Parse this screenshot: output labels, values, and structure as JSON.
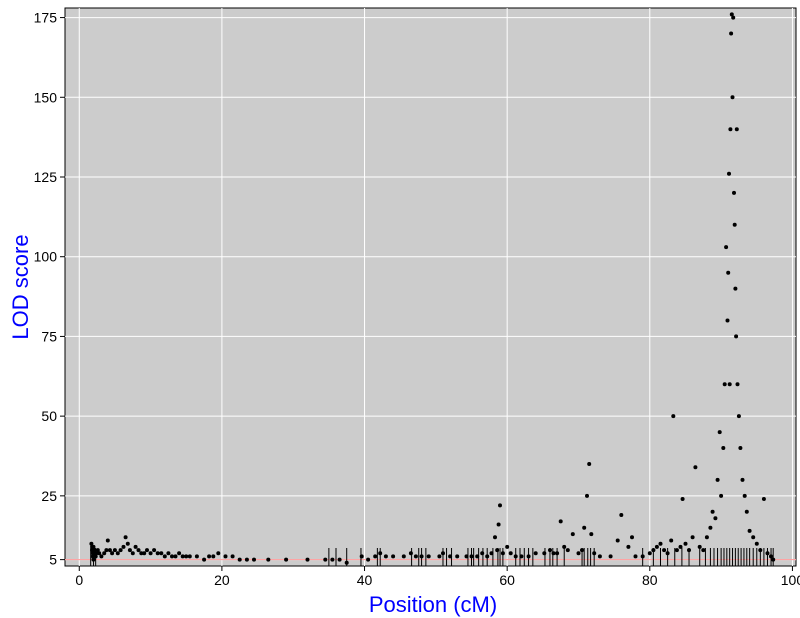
{
  "chart_data": {
    "type": "scatter",
    "title": "",
    "xlabel": "Position (cM)",
    "ylabel": "LOD score",
    "xlim": [
      -2,
      100.5
    ],
    "ylim": [
      3,
      178
    ],
    "x_ticks": [
      0,
      20,
      40,
      60,
      80,
      100
    ],
    "y_ticks": [
      5,
      25,
      50,
      75,
      100,
      125,
      150,
      175
    ],
    "x_tick_labels": [
      "0",
      "20",
      "40",
      "60",
      "80",
      "100"
    ],
    "y_tick_labels": [
      "5",
      "25",
      "50",
      "75",
      "100",
      "125",
      "150",
      "175"
    ],
    "grid": true,
    "threshold_line": 5,
    "background": "#cccccc",
    "grid_color": "#ffffff",
    "point_color": "#000000",
    "label_color": "#0000ff",
    "threshold_color": "#ff9999",
    "rug_x": [
      1.6,
      2.0,
      2.3,
      35.0,
      36.0,
      37.5,
      39.5,
      41.8,
      42.2,
      46.6,
      47.6,
      48.0,
      48.6,
      51.0,
      51.5,
      52.2,
      54.5,
      55.0,
      55.3,
      56.0,
      56.6,
      57.2,
      58.0,
      58.7,
      59.0,
      59.4,
      61.2,
      61.8,
      62.4,
      63.0,
      63.6,
      65.3,
      66.0,
      66.4,
      67.0,
      68.0,
      70.5,
      70.8,
      71.3,
      71.7,
      72.2,
      79.0,
      80.5,
      81.5,
      82.5,
      83.5,
      84.5,
      85.5,
      87.0,
      87.8,
      88.5,
      89.0,
      89.5,
      90.0,
      90.4,
      90.8,
      91.2,
      91.6,
      92.0,
      92.4,
      92.8,
      93.2,
      93.6,
      94.0,
      94.5,
      95.0,
      95.5,
      96.0,
      96.5,
      97.0,
      97.3
    ],
    "points": [
      [
        1.7,
        10
      ],
      [
        1.8,
        9
      ],
      [
        1.8,
        8
      ],
      [
        1.9,
        7
      ],
      [
        1.9,
        6
      ],
      [
        2.0,
        9
      ],
      [
        2.1,
        8
      ],
      [
        2.2,
        7
      ],
      [
        2.3,
        6
      ],
      [
        2.0,
        5
      ],
      [
        2.4,
        7
      ],
      [
        2.6,
        8
      ],
      [
        2.8,
        7
      ],
      [
        3.1,
        6
      ],
      [
        3.5,
        7
      ],
      [
        3.8,
        8
      ],
      [
        4.0,
        11
      ],
      [
        4.3,
        8
      ],
      [
        4.6,
        7
      ],
      [
        5.0,
        8
      ],
      [
        5.4,
        7
      ],
      [
        5.8,
        8
      ],
      [
        6.2,
        9
      ],
      [
        6.5,
        12
      ],
      [
        6.8,
        10
      ],
      [
        7.1,
        8
      ],
      [
        7.5,
        7
      ],
      [
        7.9,
        9
      ],
      [
        8.3,
        8
      ],
      [
        8.7,
        7
      ],
      [
        9.1,
        7
      ],
      [
        9.5,
        8
      ],
      [
        10.0,
        7
      ],
      [
        10.5,
        8
      ],
      [
        11.0,
        7
      ],
      [
        11.5,
        7
      ],
      [
        12.0,
        6
      ],
      [
        12.5,
        7
      ],
      [
        13.0,
        6
      ],
      [
        13.5,
        6
      ],
      [
        14.0,
        7
      ],
      [
        14.5,
        6
      ],
      [
        15.0,
        6
      ],
      [
        15.5,
        6
      ],
      [
        16.5,
        6
      ],
      [
        17.5,
        5
      ],
      [
        18.2,
        6
      ],
      [
        18.8,
        6
      ],
      [
        19.5,
        7
      ],
      [
        20.5,
        6
      ],
      [
        21.5,
        6
      ],
      [
        22.5,
        5
      ],
      [
        23.5,
        5
      ],
      [
        24.5,
        5
      ],
      [
        26.5,
        5
      ],
      [
        29.0,
        5
      ],
      [
        32.0,
        5
      ],
      [
        34.5,
        5
      ],
      [
        35.5,
        5
      ],
      [
        36.5,
        5
      ],
      [
        37.5,
        4
      ],
      [
        39.6,
        6
      ],
      [
        40.5,
        5
      ],
      [
        41.5,
        6
      ],
      [
        42.2,
        7
      ],
      [
        43.0,
        6
      ],
      [
        44.0,
        6
      ],
      [
        45.5,
        6
      ],
      [
        46.5,
        7
      ],
      [
        47.2,
        6
      ],
      [
        48.0,
        6
      ],
      [
        49.0,
        6
      ],
      [
        50.5,
        6
      ],
      [
        51.0,
        7
      ],
      [
        52.0,
        6
      ],
      [
        53.0,
        6
      ],
      [
        54.3,
        6
      ],
      [
        55.0,
        6
      ],
      [
        55.8,
        6
      ],
      [
        56.5,
        7
      ],
      [
        57.2,
        6
      ],
      [
        57.8,
        7
      ],
      [
        58.3,
        12
      ],
      [
        58.6,
        8
      ],
      [
        58.8,
        16
      ],
      [
        59.0,
        22
      ],
      [
        59.4,
        7
      ],
      [
        60.0,
        9
      ],
      [
        60.5,
        7
      ],
      [
        61.2,
        6
      ],
      [
        62.0,
        6
      ],
      [
        63.0,
        6
      ],
      [
        64.0,
        7
      ],
      [
        65.2,
        7
      ],
      [
        66.0,
        8
      ],
      [
        66.5,
        7
      ],
      [
        67.0,
        7
      ],
      [
        67.5,
        17
      ],
      [
        68.0,
        9
      ],
      [
        68.5,
        8
      ],
      [
        69.2,
        13
      ],
      [
        70.0,
        7
      ],
      [
        70.5,
        8
      ],
      [
        70.8,
        15
      ],
      [
        71.2,
        25
      ],
      [
        71.5,
        35
      ],
      [
        71.8,
        13
      ],
      [
        72.2,
        7
      ],
      [
        73.0,
        6
      ],
      [
        74.5,
        6
      ],
      [
        75.5,
        11
      ],
      [
        76.0,
        19
      ],
      [
        77.0,
        9
      ],
      [
        77.5,
        12
      ],
      [
        78.0,
        6
      ],
      [
        79.0,
        6
      ],
      [
        80.0,
        7
      ],
      [
        80.5,
        8
      ],
      [
        81.0,
        9
      ],
      [
        81.5,
        10
      ],
      [
        82.0,
        8
      ],
      [
        82.5,
        7
      ],
      [
        83.0,
        11
      ],
      [
        83.3,
        50
      ],
      [
        83.8,
        8
      ],
      [
        84.3,
        9
      ],
      [
        84.6,
        24
      ],
      [
        85.0,
        10
      ],
      [
        85.5,
        8
      ],
      [
        86.0,
        12
      ],
      [
        86.4,
        34
      ],
      [
        87.0,
        9
      ],
      [
        87.5,
        8
      ],
      [
        88.0,
        12
      ],
      [
        88.5,
        15
      ],
      [
        88.8,
        20
      ],
      [
        89.2,
        18
      ],
      [
        89.5,
        30
      ],
      [
        89.8,
        45
      ],
      [
        90.0,
        25
      ],
      [
        90.3,
        40
      ],
      [
        90.5,
        60
      ],
      [
        90.7,
        103
      ],
      [
        90.9,
        80
      ],
      [
        91.0,
        95
      ],
      [
        91.1,
        126
      ],
      [
        91.2,
        60
      ],
      [
        91.3,
        140
      ],
      [
        91.4,
        170
      ],
      [
        91.5,
        176
      ],
      [
        91.6,
        150
      ],
      [
        91.7,
        175
      ],
      [
        91.8,
        120
      ],
      [
        91.9,
        110
      ],
      [
        92.0,
        90
      ],
      [
        92.1,
        75
      ],
      [
        92.2,
        140
      ],
      [
        92.3,
        60
      ],
      [
        92.5,
        50
      ],
      [
        92.7,
        40
      ],
      [
        93.0,
        30
      ],
      [
        93.3,
        25
      ],
      [
        93.6,
        20
      ],
      [
        94.0,
        14
      ],
      [
        94.5,
        12
      ],
      [
        95.0,
        10
      ],
      [
        95.5,
        8
      ],
      [
        96.0,
        24
      ],
      [
        96.5,
        7
      ],
      [
        97.0,
        6
      ],
      [
        97.3,
        5
      ]
    ]
  }
}
